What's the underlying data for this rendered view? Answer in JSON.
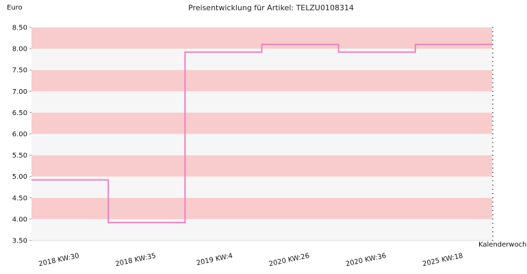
{
  "chart_data": {
    "type": "line",
    "step": true,
    "title": "Preisentwicklung für Artikel: TELZU0108314",
    "ylabel": "Euro",
    "xlabel": "Kalenderwoche",
    "ylim": [
      3.5,
      8.5
    ],
    "y_ticks": [
      "3.50",
      "4.00",
      "4.50",
      "5.00",
      "5.50",
      "6.00",
      "6.50",
      "7.00",
      "7.50",
      "8.00",
      "8.50"
    ],
    "categories": [
      "2018 KW:30",
      "2018 KW:35",
      "2019 KW:4",
      "2020 KW:26",
      "2020 KW:36",
      "2025 KW:18"
    ],
    "series": [
      {
        "values": [
          4.92,
          3.92,
          7.92,
          8.1,
          7.92,
          8.1
        ]
      }
    ],
    "grid": true,
    "colors": {
      "line": "#f080c0",
      "band_a": "#f8cccc",
      "band_b": "#f6f6f6",
      "axis": "#999999"
    }
  }
}
